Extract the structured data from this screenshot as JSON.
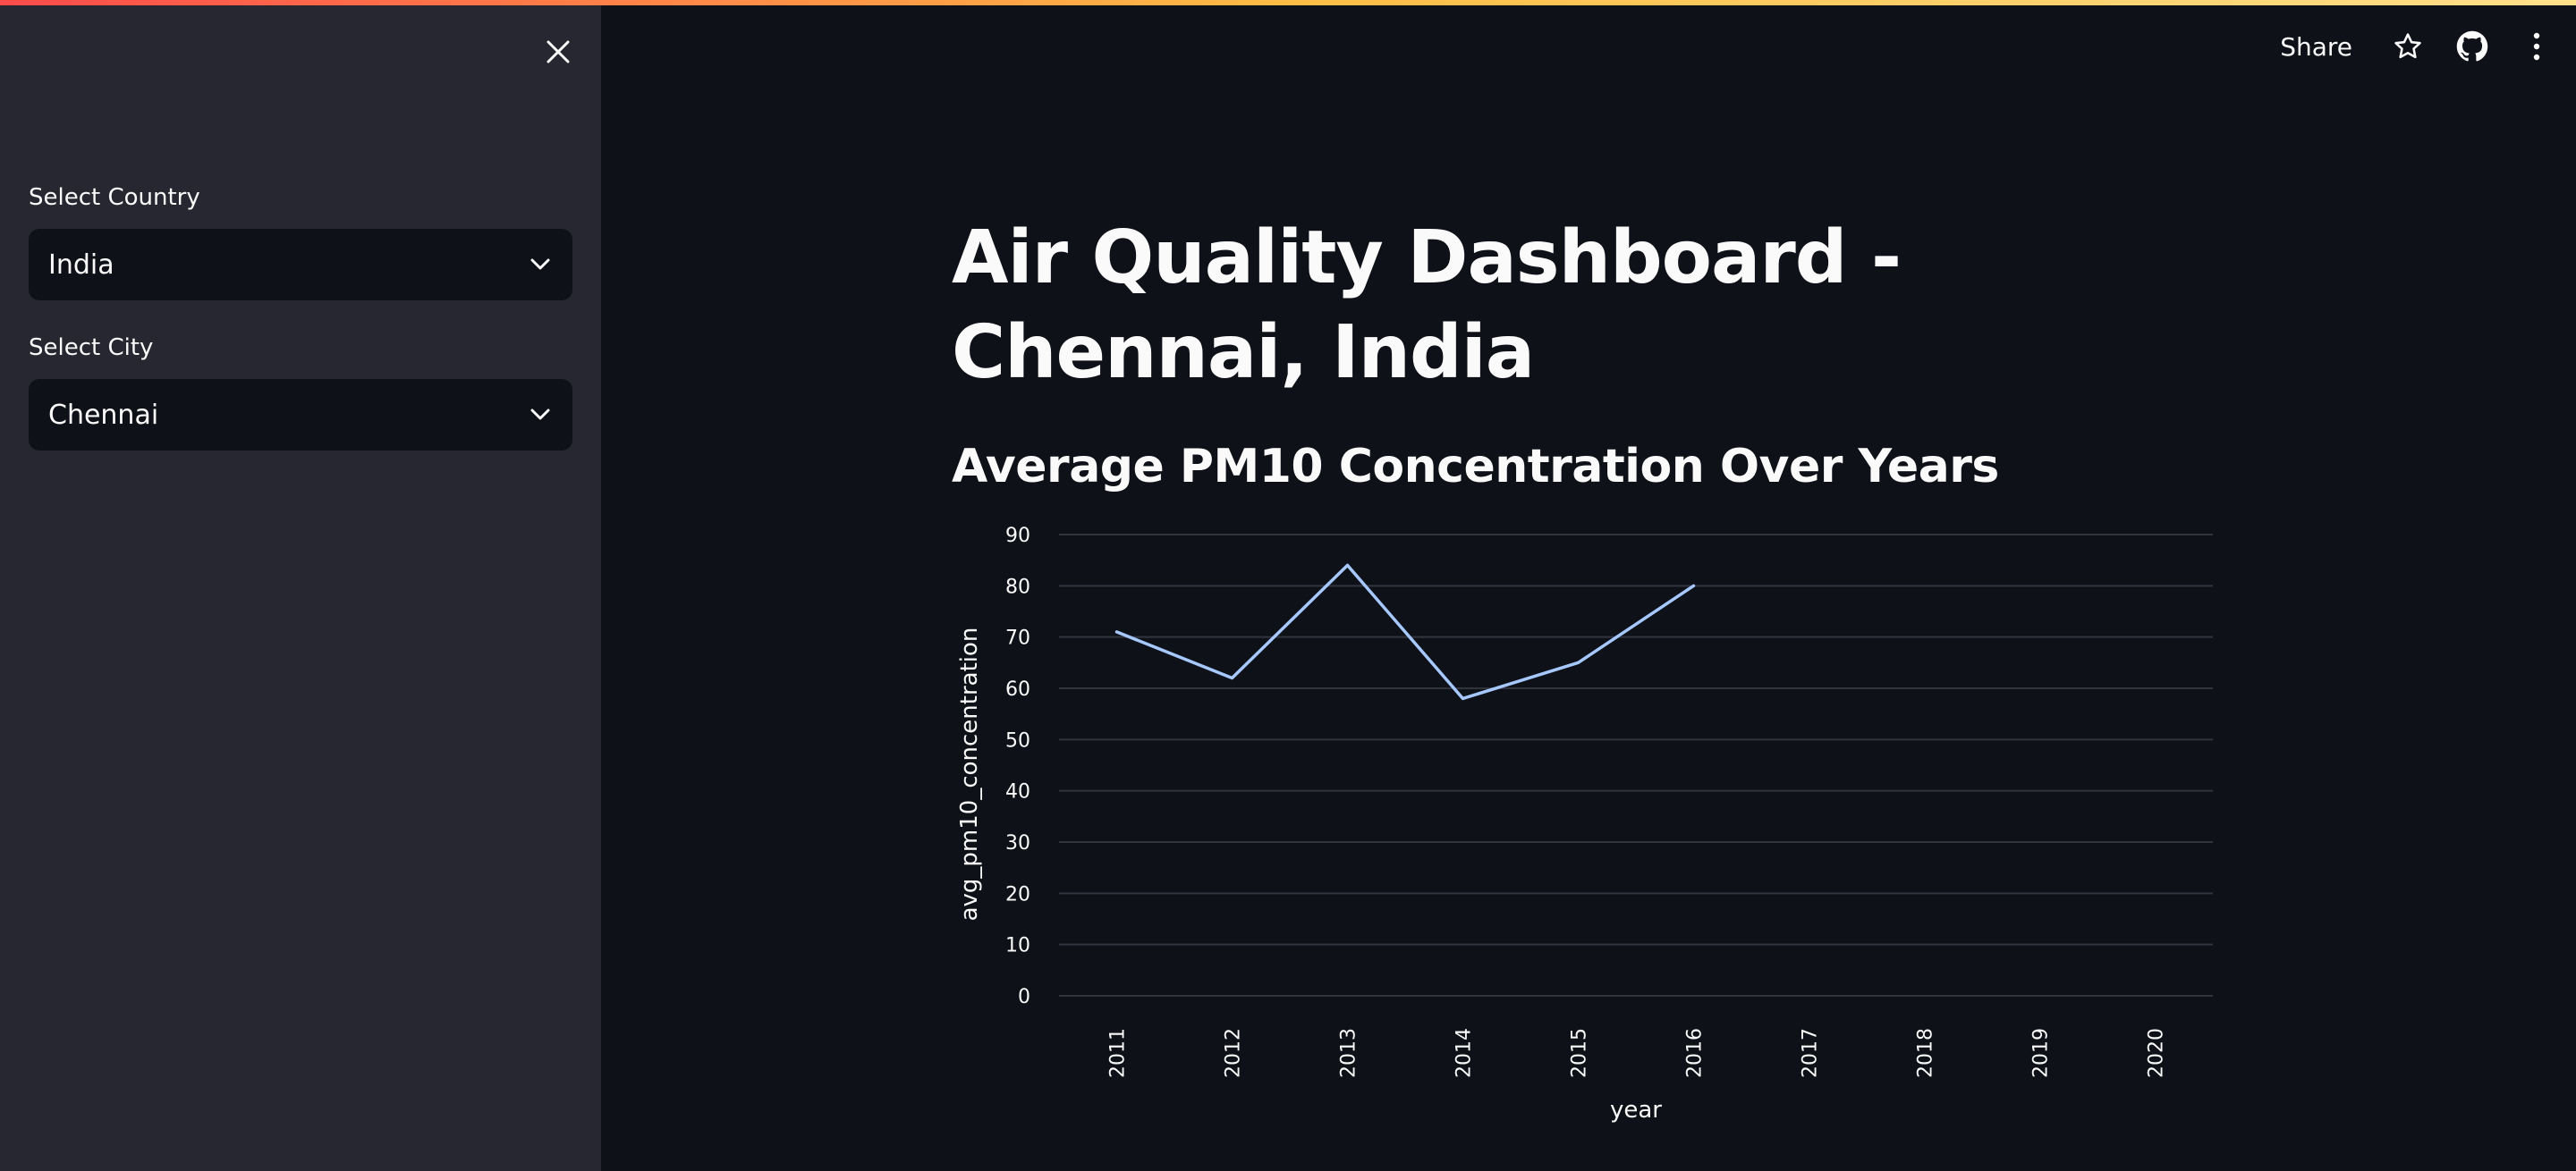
{
  "sidebar": {
    "country_label": "Select Country",
    "country_value": "India",
    "city_label": "Select City",
    "city_value": "Chennai",
    "close_icon": "close-icon",
    "chevron_icon": "chevron-down-icon"
  },
  "toolbar": {
    "share_label": "Share",
    "icons": [
      "star-icon",
      "github-icon",
      "more-vertical-icon"
    ]
  },
  "main": {
    "title": "Air Quality Dashboard - Chennai, India",
    "chart_heading": "Average PM10 Concentration Over Years"
  },
  "colors": {
    "background": "#0e1117",
    "sidebar": "#262730",
    "line": "#a6c8ff",
    "gridline": "#31333f"
  },
  "chart_data": {
    "type": "line",
    "title": "",
    "xlabel": "year",
    "ylabel": "avg_pm10_concentration",
    "categories": [
      "2011",
      "2012",
      "2013",
      "2014",
      "2015",
      "2016",
      "2017",
      "2018",
      "2019",
      "2020"
    ],
    "yticks": [
      0,
      10,
      20,
      30,
      40,
      50,
      60,
      70,
      80,
      90
    ],
    "ylim": [
      0,
      90
    ],
    "grid": true,
    "series": [
      {
        "values": [
          71,
          62,
          84,
          58,
          65,
          80,
          null,
          null,
          null,
          null
        ]
      }
    ]
  }
}
